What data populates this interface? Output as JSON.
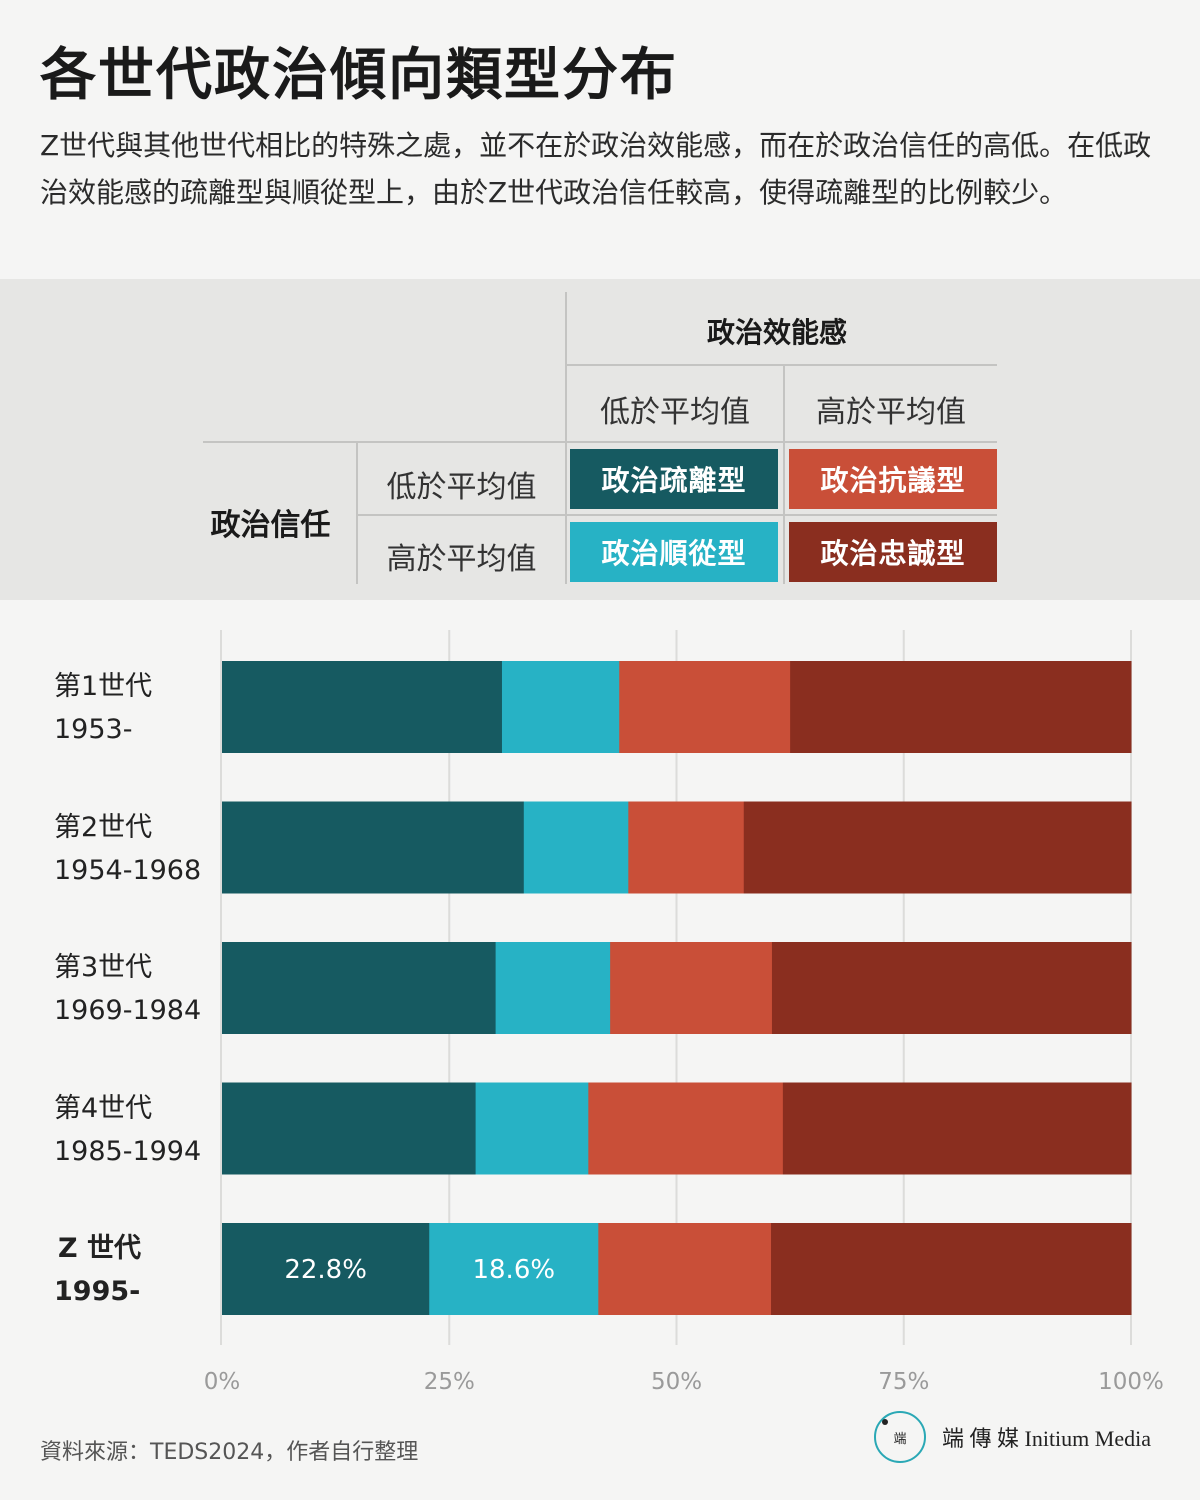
{
  "title": "各世代政治傾向類型分布",
  "subtitle": "Z世代與其他世代相比的特殊之處，並不在於政治效能感，而在於政治信任的高低。在低政治效能感的疏離型與順從型上，由於Z世代政治信任較高，使得疏離型的比例較少。",
  "legend": {
    "col_header": "政治效能感",
    "col_low": "低於平均值",
    "col_high": "高於平均值",
    "row_header": "政治信任",
    "row_low": "低於平均值",
    "row_high": "高於平均值",
    "types": {
      "alienated": "政治疏離型",
      "protest": "政治抗議型",
      "compliant": "政治順從型",
      "loyal": "政治忠誠型"
    }
  },
  "colors": {
    "alienated": "#165a61",
    "compliant": "#27b2c5",
    "protest": "#c94f38",
    "loyal": "#8a2e1f",
    "grid": "#dcdcda",
    "axis_text": "#9a9a9a"
  },
  "chart_data": {
    "type": "bar",
    "orientation": "horizontal",
    "stacked": true,
    "categories": [
      [
        "第1世代",
        "1953-"
      ],
      [
        "第2世代",
        "1954-1968"
      ],
      [
        "第3世代",
        "1969-1984"
      ],
      [
        "第4世代",
        "1985-1994"
      ],
      [
        "Z 世代",
        "1995-"
      ]
    ],
    "series": [
      {
        "name": "政治疏離型",
        "key": "alienated",
        "values": [
          30.8,
          33.2,
          30.1,
          27.9,
          22.8
        ]
      },
      {
        "name": "政治順從型",
        "key": "compliant",
        "values": [
          12.9,
          11.5,
          12.6,
          12.4,
          18.6
        ]
      },
      {
        "name": "政治抗議型",
        "key": "protest",
        "values": [
          18.8,
          12.7,
          17.8,
          21.4,
          19.0
        ]
      },
      {
        "name": "政治忠誠型",
        "key": "loyal",
        "values": [
          37.5,
          42.6,
          39.5,
          38.3,
          39.6
        ]
      }
    ],
    "data_labels": [
      {
        "category_index": 4,
        "series_key": "alienated",
        "text": "22.8%"
      },
      {
        "category_index": 4,
        "series_key": "compliant",
        "text": "18.6%"
      }
    ],
    "highlight_category_index": 4,
    "xlim": [
      0,
      100
    ],
    "xticks": [
      "0%",
      "25%",
      "50%",
      "75%",
      "100%"
    ],
    "tick_values": [
      0,
      25,
      50,
      75,
      100
    ],
    "grid": true
  },
  "footer": {
    "source": "資料來源：TEDS2024，作者自行整理",
    "brand_mark": "端",
    "brand_name": "端 傳 媒  Initium Media"
  }
}
